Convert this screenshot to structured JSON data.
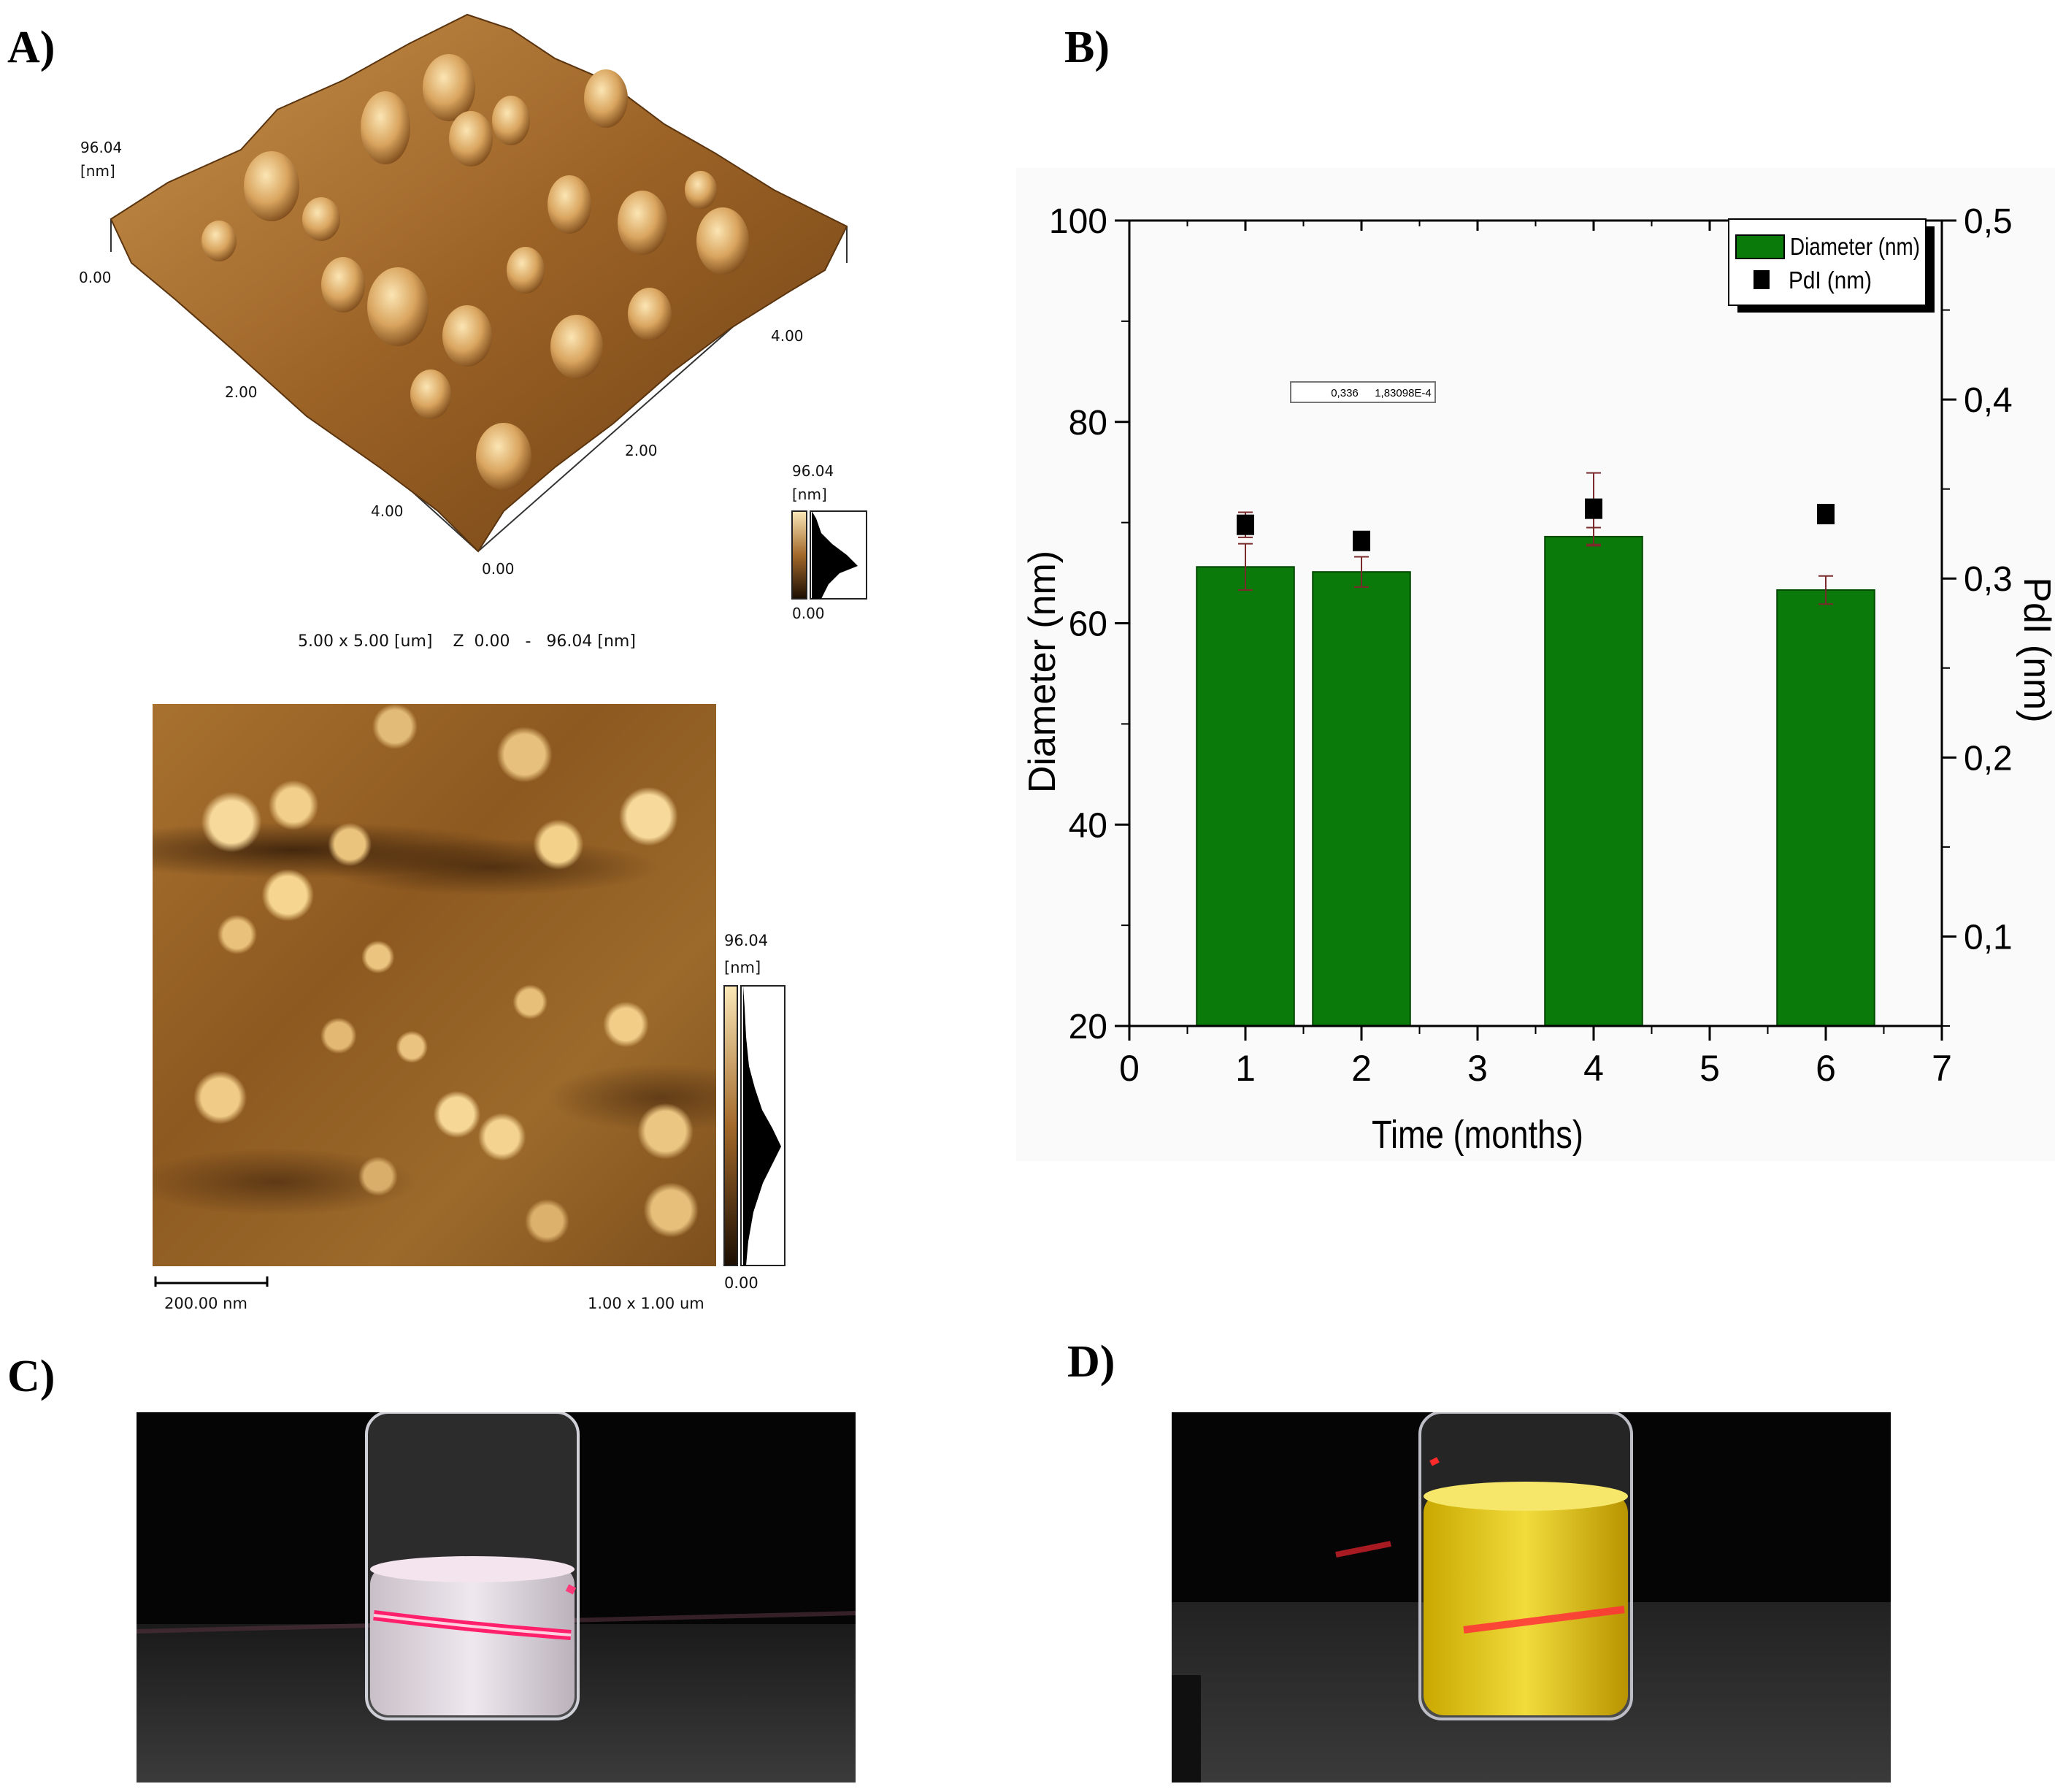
{
  "panel_labels": {
    "a": "A)",
    "b": "B)",
    "c": "C)",
    "d": "D)"
  },
  "afm_3d": {
    "z_max": "96.04",
    "z_unit": "[nm]",
    "z_min": "0.00",
    "axis_ticks_left": [
      "2.00",
      "4.00"
    ],
    "axis_ticks_right": [
      "2.00",
      "4.00"
    ],
    "origin": "0.00",
    "colorbar_max": "96.04",
    "colorbar_unit": "[nm]",
    "colorbar_min": "0.00",
    "caption": "5.00 x 5.00 [um]    Z  0.00   -   96.04 [nm]"
  },
  "afm_2d": {
    "colorbar_max": "96.04",
    "colorbar_unit": "[nm]",
    "colorbar_min": "0.00",
    "scalebar_label": "200.00 nm",
    "scan_size": "1.00 x 1.00 um"
  },
  "chart_data": {
    "type": "bar",
    "title": "",
    "xlabel": "Time (months)",
    "ylabel": "Diameter (nm)",
    "ylabel_right": "PdI (nm)",
    "xlim": [
      0,
      7
    ],
    "ylim": [
      20,
      100
    ],
    "ylim_right": [
      0.05,
      0.5
    ],
    "x_ticks": [
      "0",
      "1",
      "2",
      "3",
      "4",
      "5",
      "6",
      "7"
    ],
    "y_ticks": [
      "20",
      "40",
      "60",
      "80",
      "100"
    ],
    "y_right_ticks": [
      "0,1",
      "0,2",
      "0,3",
      "0,4",
      "0,5"
    ],
    "series": [
      {
        "name": "Diameter (nm)",
        "axis": "left",
        "color": "#0a7a0a",
        "x": [
          1,
          2,
          4,
          6
        ],
        "values": [
          65.6,
          65.1,
          68.6,
          63.3
        ],
        "errors": [
          2.3,
          1.5,
          0.9,
          1.4
        ]
      },
      {
        "name": "PdI (nm)",
        "axis": "right",
        "marker": "square",
        "color": "#000000",
        "x": [
          1,
          2,
          4,
          6
        ],
        "values": [
          0.33,
          0.321,
          0.339,
          0.336
        ],
        "errors": [
          0.007,
          0.005,
          0.02,
          0.003
        ]
      }
    ],
    "legend": [
      "Diameter (nm)",
      "PdI (nm)"
    ],
    "legend_position": "top-right",
    "annotation": {
      "col1": "0,336",
      "col2": "1,83098E-4"
    }
  }
}
